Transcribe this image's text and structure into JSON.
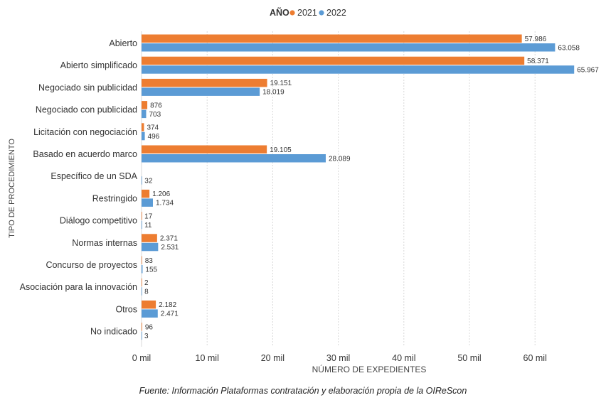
{
  "source_note": "Fuente: Información Plataformas contratación y elaboración propia de la OIReScon",
  "chart_data": {
    "type": "bar",
    "orientation": "horizontal",
    "legend_title": "AÑO",
    "legend_position": "top-center",
    "xlabel": "NÚMERO DE EXPEDIENTES",
    "ylabel": "TIPO DE PROCEDIMIENTO",
    "xlim": [
      0,
      66000
    ],
    "xticks": [
      0,
      10000,
      20000,
      30000,
      40000,
      50000,
      60000
    ],
    "xtick_labels": [
      "0 mil",
      "10 mil",
      "20 mil",
      "30 mil",
      "40 mil",
      "50 mil",
      "60 mil"
    ],
    "grid": "vertical",
    "categories": [
      "Abierto",
      "Abierto simplificado",
      "Negociado sin publicidad",
      "Negociado con publicidad",
      "Licitación con negociación",
      "Basado en acuerdo marco",
      "Específico de un SDA",
      "Restringido",
      "Diálogo competitivo",
      "Normas internas",
      "Concurso de proyectos",
      "Asociación para la innovación",
      "Otros",
      "No indicado"
    ],
    "series": [
      {
        "name": "2021",
        "color": "#ED7D31",
        "values": [
          57986,
          58371,
          19151,
          876,
          374,
          19105,
          null,
          1206,
          17,
          2371,
          83,
          2,
          2182,
          96
        ],
        "labels": [
          "57.986",
          "58.371",
          "19.151",
          "876",
          "374",
          "19.105",
          "",
          "1.206",
          "17",
          "2.371",
          "83",
          "2",
          "2.182",
          "96"
        ]
      },
      {
        "name": "2022",
        "color": "#5B9BD5",
        "values": [
          63058,
          65967,
          18019,
          703,
          496,
          28089,
          32,
          1734,
          11,
          2531,
          155,
          8,
          2471,
          3
        ],
        "labels": [
          "63.058",
          "65.967",
          "18.019",
          "703",
          "496",
          "28.089",
          "32",
          "1.734",
          "11",
          "2.531",
          "155",
          "8",
          "2.471",
          "3"
        ]
      }
    ]
  }
}
